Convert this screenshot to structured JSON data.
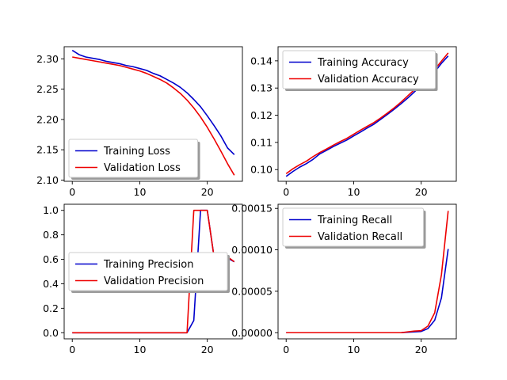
{
  "colors": {
    "training": "#0000cc",
    "validation": "#ee0000"
  },
  "chart_data": [
    {
      "type": "line",
      "position": "top-left",
      "x": [
        0,
        1,
        2,
        3,
        4,
        5,
        6,
        7,
        8,
        9,
        10,
        11,
        12,
        13,
        14,
        15,
        16,
        17,
        18,
        19,
        20,
        21,
        22,
        23,
        24
      ],
      "xlim": [
        -1.2,
        25.2
      ],
      "ylim": [
        2.098,
        2.32
      ],
      "xticks": [
        0,
        10,
        20
      ],
      "xtick_labels": [
        "0",
        "10",
        "20"
      ],
      "yticks": [
        2.1,
        2.15,
        2.2,
        2.25,
        2.3
      ],
      "ytick_labels": [
        "2.10",
        "2.15",
        "2.20",
        "2.25",
        "2.30"
      ],
      "legend_loc": "lower-left",
      "series": [
        {
          "name": "Training Loss",
          "color": "training",
          "values": [
            2.314,
            2.307,
            2.303,
            2.301,
            2.299,
            2.296,
            2.294,
            2.292,
            2.289,
            2.287,
            2.284,
            2.281,
            2.276,
            2.272,
            2.266,
            2.26,
            2.253,
            2.244,
            2.233,
            2.221,
            2.206,
            2.19,
            2.173,
            2.153,
            2.142
          ]
        },
        {
          "name": "Validation Loss",
          "color": "validation",
          "values": [
            2.303,
            2.301,
            2.299,
            2.297,
            2.295,
            2.293,
            2.291,
            2.289,
            2.286,
            2.283,
            2.28,
            2.276,
            2.271,
            2.266,
            2.26,
            2.252,
            2.243,
            2.232,
            2.219,
            2.204,
            2.187,
            2.168,
            2.148,
            2.127,
            2.108
          ]
        }
      ]
    },
    {
      "type": "line",
      "position": "top-right",
      "x": [
        0,
        1,
        2,
        3,
        4,
        5,
        6,
        7,
        8,
        9,
        10,
        11,
        12,
        13,
        14,
        15,
        16,
        17,
        18,
        19,
        20,
        21,
        22,
        23,
        24
      ],
      "xlim": [
        -1.2,
        25.2
      ],
      "ylim": [
        0.0957,
        0.1452
      ],
      "xticks": [
        0,
        10,
        20
      ],
      "xtick_labels": [
        "0",
        "10",
        "20"
      ],
      "yticks": [
        0.1,
        0.11,
        0.12,
        0.13,
        0.14
      ],
      "ytick_labels": [
        "0.10",
        "0.11",
        "0.12",
        "0.13",
        "0.14"
      ],
      "legend_loc": "upper-left",
      "series": [
        {
          "name": "Training Accuracy",
          "color": "training",
          "values": [
            0.0975,
            0.0993,
            0.1009,
            0.1022,
            0.1038,
            0.1058,
            0.1071,
            0.1085,
            0.1097,
            0.1109,
            0.1124,
            0.1138,
            0.1153,
            0.1167,
            0.1185,
            0.1203,
            0.1222,
            0.1242,
            0.1263,
            0.1286,
            0.131,
            0.1334,
            0.1359,
            0.1391,
            0.1418
          ]
        },
        {
          "name": "Validation Accuracy",
          "color": "validation",
          "values": [
            0.0985,
            0.1003,
            0.1018,
            0.1031,
            0.1048,
            0.1063,
            0.1076,
            0.109,
            0.1103,
            0.1115,
            0.113,
            0.1145,
            0.1159,
            0.1173,
            0.119,
            0.1208,
            0.1227,
            0.1248,
            0.1271,
            0.1294,
            0.1318,
            0.1343,
            0.1368,
            0.1399,
            0.1429
          ]
        }
      ]
    },
    {
      "type": "line",
      "position": "bottom-left",
      "x": [
        0,
        1,
        2,
        3,
        4,
        5,
        6,
        7,
        8,
        9,
        10,
        11,
        12,
        13,
        14,
        15,
        16,
        17,
        18,
        19,
        20,
        21,
        22,
        23,
        24
      ],
      "xlim": [
        -1.2,
        25.2
      ],
      "ylim": [
        -0.05,
        1.05
      ],
      "xticks": [
        0,
        10,
        20
      ],
      "xtick_labels": [
        "0",
        "10",
        "20"
      ],
      "yticks": [
        0.0,
        0.2,
        0.4,
        0.6,
        0.8,
        1.0
      ],
      "ytick_labels": [
        "0.0",
        "0.2",
        "0.4",
        "0.6",
        "0.8",
        "1.0"
      ],
      "legend_loc": "center-left",
      "series": [
        {
          "name": "Training Precision",
          "color": "training",
          "values": [
            0,
            0,
            0,
            0,
            0,
            0,
            0,
            0,
            0,
            0,
            0,
            0,
            0,
            0,
            0,
            0,
            0,
            0,
            0.1,
            1.0,
            1.0,
            0.62,
            0.57,
            0.61,
            0.58
          ]
        },
        {
          "name": "Validation Precision",
          "color": "validation",
          "values": [
            0,
            0,
            0,
            0,
            0,
            0,
            0,
            0,
            0,
            0,
            0,
            0,
            0,
            0,
            0,
            0,
            0,
            0,
            1.0,
            1.0,
            1.0,
            0.62,
            0.61,
            0.62,
            0.58
          ]
        }
      ]
    },
    {
      "type": "line",
      "position": "bottom-right",
      "x": [
        0,
        1,
        2,
        3,
        4,
        5,
        6,
        7,
        8,
        9,
        10,
        11,
        12,
        13,
        14,
        15,
        16,
        17,
        18,
        19,
        20,
        21,
        22,
        23,
        24
      ],
      "xlim": [
        -1.2,
        25.2
      ],
      "ylim": [
        -7.4e-06,
        0.000155
      ],
      "xticks": [
        0,
        10,
        20
      ],
      "xtick_labels": [
        "0",
        "10",
        "20"
      ],
      "yticks": [
        0.0,
        5e-05,
        0.0001,
        0.00015
      ],
      "ytick_labels": [
        "0.00000",
        "0.00005",
        "0.00010",
        "0.00015"
      ],
      "legend_loc": "upper-left",
      "series": [
        {
          "name": "Training Recall",
          "color": "training",
          "values": [
            0,
            0,
            0,
            0,
            0,
            0,
            0,
            0,
            0,
            0,
            0,
            0,
            0,
            0,
            0,
            0,
            0,
            0,
            5e-07,
            1e-06,
            1.5e-06,
            5e-06,
            1.5e-05,
            4.2e-05,
            0.000101
          ]
        },
        {
          "name": "Validation Recall",
          "color": "validation",
          "values": [
            0,
            0,
            0,
            0,
            0,
            0,
            0,
            0,
            0,
            0,
            0,
            0,
            0,
            0,
            0,
            0,
            0,
            0,
            1e-06,
            2e-06,
            2.5e-06,
            8e-06,
            2.4e-05,
            7e-05,
            0.000147
          ]
        }
      ]
    }
  ]
}
